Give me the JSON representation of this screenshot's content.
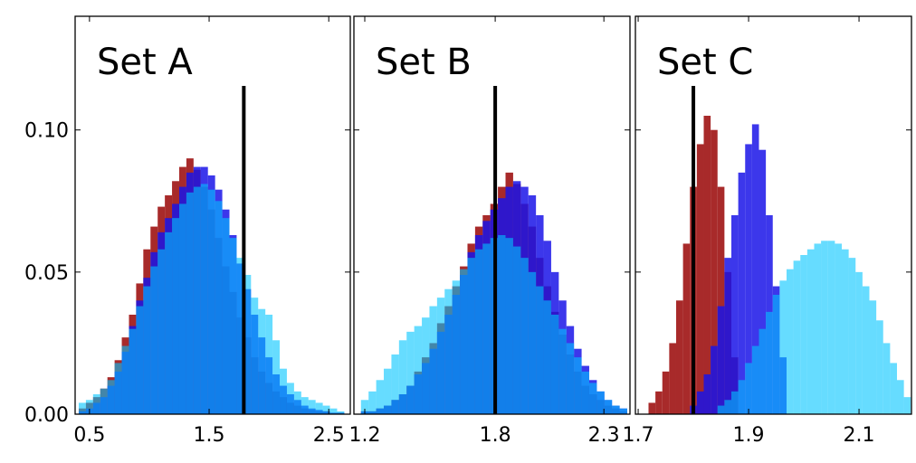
{
  "chart_data": {
    "type": "histogram",
    "shared_y": {
      "ylim": [
        0,
        0.14
      ],
      "ticks": [
        0.0,
        0.05,
        0.1
      ],
      "tick_labels": [
        "0.00",
        "0.05",
        "0.10"
      ]
    },
    "series_colors": [
      "#a31f1f",
      "#1a14e8",
      "#00c4ff"
    ],
    "panels": [
      {
        "title": "Set A",
        "xlim": [
          0.38,
          2.68
        ],
        "xticks": [
          0.5,
          1.5,
          2.5
        ],
        "xtick_labels": [
          "0.5",
          "1.5",
          "2.5"
        ],
        "marker_x": 1.79,
        "bin_width": 0.06,
        "series": [
          {
            "centers": [
              0.44,
              0.5,
              0.56,
              0.62,
              0.68,
              0.74,
              0.8,
              0.86,
              0.92,
              0.98,
              1.04,
              1.1,
              1.16,
              1.22,
              1.28,
              1.34,
              1.4,
              1.46,
              1.52,
              1.58,
              1.64,
              1.7,
              1.76,
              1.82,
              1.88,
              1.94,
              2.0,
              2.06,
              2.12,
              2.18,
              2.24,
              2.3,
              2.36,
              2.42,
              2.48,
              2.54,
              2.6
            ],
            "values": [
              0.002,
              0.004,
              0.006,
              0.009,
              0.013,
              0.019,
              0.027,
              0.035,
              0.046,
              0.058,
              0.066,
              0.073,
              0.077,
              0.082,
              0.087,
              0.09,
              0.086,
              0.08,
              0.072,
              0.062,
              0.052,
              0.043,
              0.034,
              0.027,
              0.02,
              0.015,
              0.011,
              0.008,
              0.006,
              0.004,
              0.003,
              0.002,
              0.0015,
              0.001,
              0.001,
              0.0005,
              0.0005
            ]
          },
          {
            "centers": [
              0.44,
              0.5,
              0.56,
              0.62,
              0.68,
              0.74,
              0.8,
              0.86,
              0.92,
              0.98,
              1.04,
              1.1,
              1.16,
              1.22,
              1.28,
              1.34,
              1.4,
              1.46,
              1.52,
              1.58,
              1.64,
              1.7,
              1.76,
              1.82,
              1.88,
              1.94,
              2.0,
              2.06,
              2.12,
              2.18,
              2.24,
              2.3,
              2.36,
              2.42,
              2.48,
              2.54,
              2.6
            ],
            "values": [
              0.001,
              0.002,
              0.004,
              0.006,
              0.01,
              0.015,
              0.022,
              0.031,
              0.04,
              0.048,
              0.057,
              0.064,
              0.069,
              0.074,
              0.08,
              0.085,
              0.087,
              0.087,
              0.084,
              0.079,
              0.072,
              0.063,
              0.053,
              0.044,
              0.035,
              0.027,
              0.02,
              0.014,
              0.01,
              0.007,
              0.005,
              0.003,
              0.002,
              0.0015,
              0.001,
              0.0005,
              0.0005
            ]
          },
          {
            "centers": [
              0.44,
              0.5,
              0.56,
              0.62,
              0.68,
              0.74,
              0.8,
              0.86,
              0.92,
              0.98,
              1.04,
              1.1,
              1.16,
              1.22,
              1.28,
              1.34,
              1.4,
              1.46,
              1.52,
              1.58,
              1.64,
              1.7,
              1.76,
              1.82,
              1.88,
              1.94,
              2.0,
              2.06,
              2.12,
              2.18,
              2.24,
              2.3,
              2.36,
              2.42,
              2.48,
              2.54,
              2.6
            ],
            "values": [
              0.004,
              0.005,
              0.007,
              0.009,
              0.012,
              0.018,
              0.024,
              0.03,
              0.038,
              0.045,
              0.052,
              0.058,
              0.064,
              0.069,
              0.074,
              0.078,
              0.08,
              0.081,
              0.079,
              0.075,
              0.069,
              0.062,
              0.055,
              0.049,
              0.041,
              0.037,
              0.035,
              0.026,
              0.016,
              0.011,
              0.008,
              0.006,
              0.005,
              0.004,
              0.003,
              0.002,
              0.001
            ]
          }
        ]
      },
      {
        "title": "Set B",
        "xlim": [
          1.15,
          2.42
        ],
        "xticks": [
          1.2,
          1.8,
          2.3
        ],
        "xtick_labels": [
          "1.2",
          "1.8",
          "2.3"
        ],
        "marker_x": 1.8,
        "bin_width": 0.035,
        "series": [
          {
            "centers": [
              1.2,
              1.235,
              1.27,
              1.305,
              1.34,
              1.375,
              1.41,
              1.445,
              1.48,
              1.515,
              1.55,
              1.585,
              1.62,
              1.655,
              1.69,
              1.725,
              1.76,
              1.795,
              1.83,
              1.865,
              1.9,
              1.935,
              1.97,
              2.005,
              2.04,
              2.075,
              2.11,
              2.145,
              2.18,
              2.215,
              2.25,
              2.285,
              2.32,
              2.355,
              2.39
            ],
            "values": [
              0.001,
              0.001,
              0.002,
              0.003,
              0.005,
              0.007,
              0.01,
              0.015,
              0.02,
              0.025,
              0.032,
              0.038,
              0.045,
              0.052,
              0.06,
              0.066,
              0.07,
              0.074,
              0.08,
              0.085,
              0.081,
              0.074,
              0.066,
              0.055,
              0.045,
              0.036,
              0.028,
              0.021,
              0.015,
              0.01,
              0.007,
              0.005,
              0.003,
              0.002,
              0.001
            ]
          },
          {
            "centers": [
              1.2,
              1.235,
              1.27,
              1.305,
              1.34,
              1.375,
              1.41,
              1.445,
              1.48,
              1.515,
              1.55,
              1.585,
              1.62,
              1.655,
              1.69,
              1.725,
              1.76,
              1.795,
              1.83,
              1.865,
              1.9,
              1.935,
              1.97,
              2.005,
              2.04,
              2.075,
              2.11,
              2.145,
              2.18,
              2.215,
              2.25,
              2.285,
              2.32,
              2.355,
              2.39
            ],
            "values": [
              0.001,
              0.001,
              0.002,
              0.003,
              0.005,
              0.007,
              0.01,
              0.014,
              0.018,
              0.023,
              0.029,
              0.035,
              0.042,
              0.049,
              0.057,
              0.063,
              0.068,
              0.072,
              0.076,
              0.08,
              0.082,
              0.08,
              0.077,
              0.07,
              0.061,
              0.05,
              0.04,
              0.031,
              0.023,
              0.017,
              0.012,
              0.008,
              0.005,
              0.003,
              0.002
            ]
          },
          {
            "centers": [
              1.2,
              1.235,
              1.27,
              1.305,
              1.34,
              1.375,
              1.41,
              1.445,
              1.48,
              1.515,
              1.55,
              1.585,
              1.62,
              1.655,
              1.69,
              1.725,
              1.76,
              1.795,
              1.83,
              1.865,
              1.9,
              1.935,
              1.97,
              2.005,
              2.04,
              2.075,
              2.11,
              2.145,
              2.18,
              2.215,
              2.25,
              2.285,
              2.32,
              2.355,
              2.39
            ],
            "values": [
              0.005,
              0.008,
              0.012,
              0.016,
              0.021,
              0.026,
              0.029,
              0.031,
              0.034,
              0.038,
              0.041,
              0.044,
              0.047,
              0.051,
              0.055,
              0.058,
              0.06,
              0.062,
              0.063,
              0.062,
              0.059,
              0.055,
              0.05,
              0.045,
              0.04,
              0.035,
              0.03,
              0.025,
              0.02,
              0.015,
              0.011,
              0.008,
              0.005,
              0.003,
              0.002
            ]
          }
        ]
      },
      {
        "title": "Set C",
        "xlim": [
          1.695,
          2.195
        ],
        "xticks": [
          1.7,
          1.9,
          2.1
        ],
        "xtick_labels": [
          "1.7",
          "1.9",
          "2.1"
        ],
        "marker_x": 1.8,
        "bin_width": 0.0125,
        "series": [
          {
            "centers": [
              1.725,
              1.7375,
              1.75,
              1.7625,
              1.775,
              1.7875,
              1.8,
              1.8125,
              1.825,
              1.8375,
              1.85,
              1.8625,
              1.875
            ],
            "values": [
              0.004,
              0.008,
              0.015,
              0.025,
              0.04,
              0.06,
              0.08,
              0.095,
              0.105,
              0.1,
              0.08,
              0.05,
              0.02
            ]
          },
          {
            "centers": [
              1.8,
              1.8125,
              1.825,
              1.8375,
              1.85,
              1.8625,
              1.875,
              1.8875,
              1.9,
              1.9125,
              1.925,
              1.9375,
              1.95,
              1.9625
            ],
            "values": [
              0.003,
              0.008,
              0.014,
              0.024,
              0.038,
              0.055,
              0.07,
              0.085,
              0.095,
              0.102,
              0.093,
              0.07,
              0.045,
              0.02
            ]
          },
          {
            "centers": [
              1.85,
              1.8625,
              1.875,
              1.8875,
              1.9,
              1.9125,
              1.925,
              1.9375,
              1.95,
              1.9625,
              1.975,
              1.9875,
              2.0,
              2.0125,
              2.025,
              2.0375,
              2.05,
              2.0625,
              2.075,
              2.0875,
              2.1,
              2.1125,
              2.125,
              2.1375,
              2.15,
              2.1625,
              2.175,
              2.1875
            ],
            "values": [
              0.003,
              0.005,
              0.008,
              0.012,
              0.018,
              0.024,
              0.03,
              0.036,
              0.042,
              0.047,
              0.051,
              0.054,
              0.056,
              0.058,
              0.06,
              0.061,
              0.061,
              0.06,
              0.058,
              0.055,
              0.05,
              0.045,
              0.04,
              0.033,
              0.025,
              0.018,
              0.012,
              0.006
            ]
          }
        ]
      }
    ]
  }
}
